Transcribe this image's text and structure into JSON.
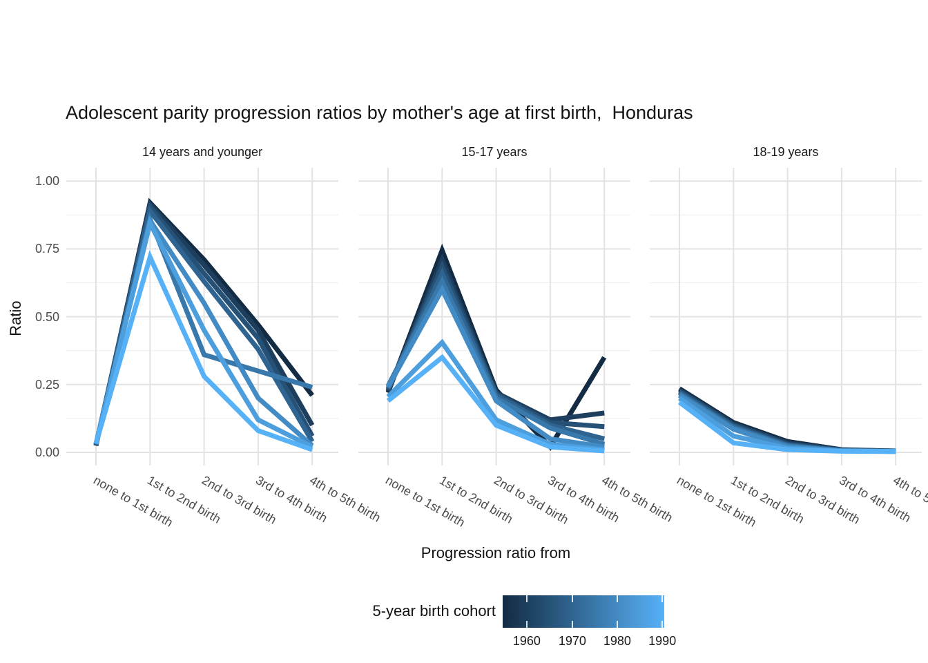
{
  "title": "Adolescent parity progression ratios by mother's age at first birth,  Honduras",
  "y_axis": {
    "title": "Ratio",
    "tick_labels": [
      "0.00",
      "0.25",
      "0.50",
      "0.75",
      "1.00"
    ]
  },
  "x_axis": {
    "title": "Progression ratio from"
  },
  "chart_data": {
    "type": "line",
    "title": "Adolescent parity progression ratios by mother's age at first birth,  Honduras",
    "xlabel": "Progression ratio from",
    "ylabel": "Ratio",
    "ylim": [
      0,
      1
    ],
    "grid": true,
    "y_major_ticks": [
      0,
      0.25,
      0.5,
      0.75,
      1.0
    ],
    "y_minor_ticks": [
      0.125,
      0.375,
      0.625,
      0.875
    ],
    "y_tick_labels": [
      "0.00",
      "0.25",
      "0.50",
      "0.75",
      "1.00"
    ],
    "categories": [
      "none to 1st birth",
      "1st to 2nd birth",
      "2nd to 3rd birth",
      "3rd to 4th birth",
      "4th to 5th birth"
    ],
    "legend": {
      "title": "5-year birth cohort",
      "position": "bottom",
      "type": "colorbar",
      "low_color": "#132B43",
      "high_color": "#56B1F7",
      "domain": [
        1955,
        1990
      ],
      "tick_labels": [
        "1960",
        "1970",
        "1980",
        "1990"
      ]
    },
    "facets": [
      {
        "label": "14 years and younger",
        "series": [
          {
            "name": "1955",
            "color": "#132B43",
            "values": [
              0.025,
              0.92,
              0.71,
              0.47,
              0.21
            ]
          },
          {
            "name": "1960",
            "color": "#1D3E5D",
            "values": [
              0.026,
              0.915,
              0.69,
              0.45,
              0.1
            ]
          },
          {
            "name": "1965",
            "color": "#265176",
            "values": [
              0.028,
              0.905,
              0.66,
              0.42,
              0.06
            ]
          },
          {
            "name": "1970",
            "color": "#306490",
            "values": [
              0.03,
              0.89,
              0.63,
              0.38,
              0.04
            ]
          },
          {
            "name": "1975",
            "color": "#3978AA",
            "values": [
              0.03,
              0.86,
              0.36,
              0.3,
              0.24
            ]
          },
          {
            "name": "1980",
            "color": "#438BC4",
            "values": [
              0.03,
              0.855,
              0.55,
              0.2,
              0.025
            ]
          },
          {
            "name": "1985",
            "color": "#4C9EDD",
            "values": [
              0.032,
              0.845,
              0.45,
              0.12,
              0.02
            ]
          },
          {
            "name": "1990",
            "color": "#56B1F7",
            "values": [
              0.033,
              0.72,
              0.28,
              0.08,
              0.01
            ]
          }
        ]
      },
      {
        "label": "15-17 years",
        "series": [
          {
            "name": "1955",
            "color": "#132B43",
            "values": [
              0.22,
              0.745,
              0.23,
              0.02,
              0.35
            ]
          },
          {
            "name": "1960",
            "color": "#1D3E5D",
            "values": [
              0.225,
              0.71,
              0.22,
              0.12,
              0.145
            ]
          },
          {
            "name": "1965",
            "color": "#265176",
            "values": [
              0.23,
              0.685,
              0.215,
              0.11,
              0.095
            ]
          },
          {
            "name": "1970",
            "color": "#306490",
            "values": [
              0.235,
              0.66,
              0.21,
              0.1,
              0.05
            ]
          },
          {
            "name": "1975",
            "color": "#3978AA",
            "values": [
              0.245,
              0.63,
              0.2,
              0.09,
              0.03
            ]
          },
          {
            "name": "1980",
            "color": "#438BC4",
            "values": [
              0.24,
              0.6,
              0.19,
              0.05,
              0.02
            ]
          },
          {
            "name": "1985",
            "color": "#4C9EDD",
            "values": [
              0.205,
              0.405,
              0.12,
              0.03,
              0.01
            ]
          },
          {
            "name": "1990",
            "color": "#56B1F7",
            "values": [
              0.19,
              0.35,
              0.1,
              0.02,
              0.005
            ]
          }
        ]
      },
      {
        "label": "18-19 years",
        "series": [
          {
            "name": "1955",
            "color": "#132B43",
            "values": [
              0.235,
              0.11,
              0.04,
              0.01,
              0.005
            ]
          },
          {
            "name": "1960",
            "color": "#1D3E5D",
            "values": [
              0.23,
              0.105,
              0.035,
              0.009,
              0.005
            ]
          },
          {
            "name": "1965",
            "color": "#265176",
            "values": [
              0.225,
              0.1,
              0.03,
              0.008,
              0.004
            ]
          },
          {
            "name": "1970",
            "color": "#306490",
            "values": [
              0.22,
              0.095,
              0.027,
              0.007,
              0.004
            ]
          },
          {
            "name": "1975",
            "color": "#3978AA",
            "values": [
              0.215,
              0.09,
              0.024,
              0.006,
              0.004
            ]
          },
          {
            "name": "1980",
            "color": "#438BC4",
            "values": [
              0.21,
              0.085,
              0.02,
              0.006,
              0.003
            ]
          },
          {
            "name": "1985",
            "color": "#4C9EDD",
            "values": [
              0.2,
              0.06,
              0.015,
              0.005,
              0.003
            ]
          },
          {
            "name": "1990",
            "color": "#56B1F7",
            "values": [
              0.185,
              0.035,
              0.01,
              0.004,
              0.003
            ]
          }
        ]
      }
    ]
  }
}
